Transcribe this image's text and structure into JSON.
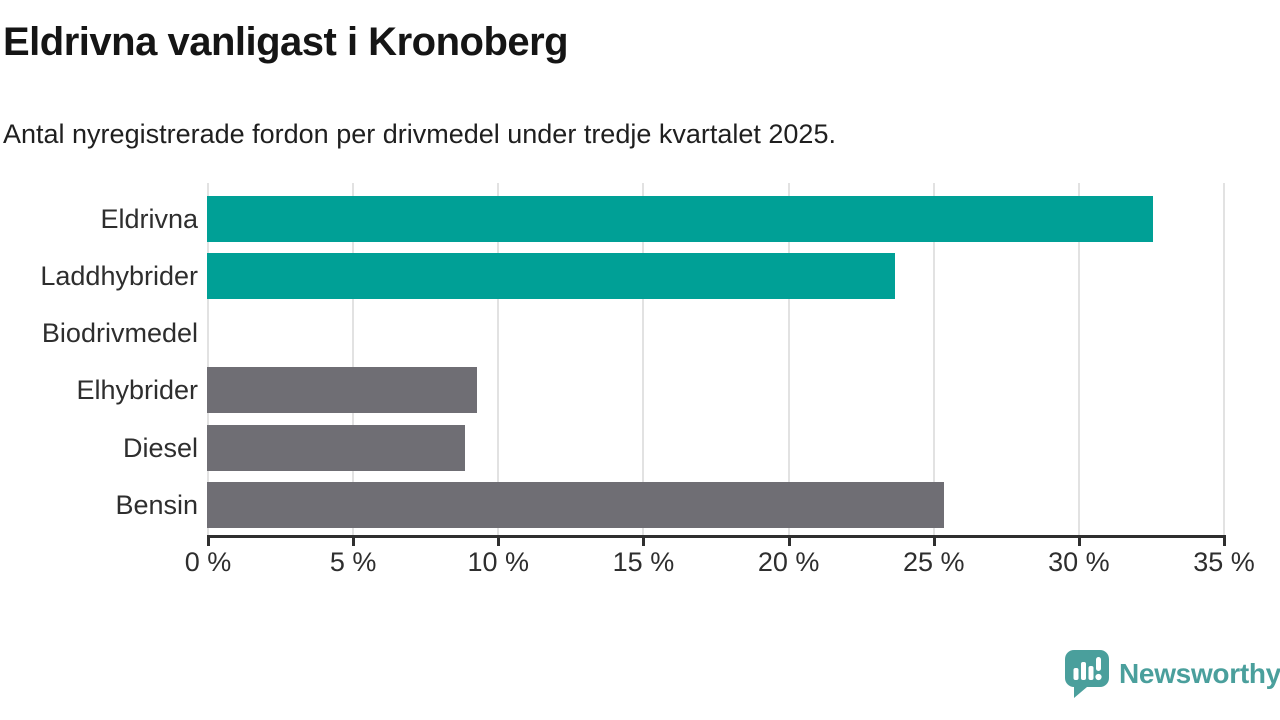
{
  "header": {
    "title": "Eldrivna vanligast i Kronoberg",
    "subtitle": "Antal nyregistrerade fordon per drivmedel under tredje kvartalet 2025."
  },
  "chart_data": {
    "type": "bar",
    "orientation": "horizontal",
    "title": "Eldrivna vanligast i Kronoberg",
    "subtitle": "Antal nyregistrerade fordon per drivmedel under tredje kvartalet 2025.",
    "categories": [
      "Eldrivna",
      "Laddhybrider",
      "Biodrivmedel",
      "Elhybrider",
      "Diesel",
      "Bensin"
    ],
    "values": [
      32.6,
      23.7,
      0,
      9.3,
      8.9,
      25.4
    ],
    "unit": "%",
    "bar_colors": [
      "#00a096",
      "#00a096",
      "#6f6e74",
      "#6f6e74",
      "#6f6e74",
      "#6f6e74"
    ],
    "xlabel": "",
    "ylabel": "",
    "xlim": [
      0,
      35
    ],
    "x_ticks": [
      0,
      5,
      10,
      15,
      20,
      25,
      30,
      35
    ],
    "x_tick_labels": [
      "0 %",
      "5 %",
      "10 %",
      "15 %",
      "20 %",
      "25 %",
      "30 %",
      "35 %"
    ],
    "grid": "vertical",
    "legend": "none"
  },
  "colors": {
    "highlight_bar": "#00a096",
    "default_bar": "#6f6e74",
    "gridline": "#e2e2e2",
    "axis": "#2f2f2f",
    "brand_teal": "#4a9f9c"
  },
  "footer": {
    "brand": "Newsworthy"
  }
}
